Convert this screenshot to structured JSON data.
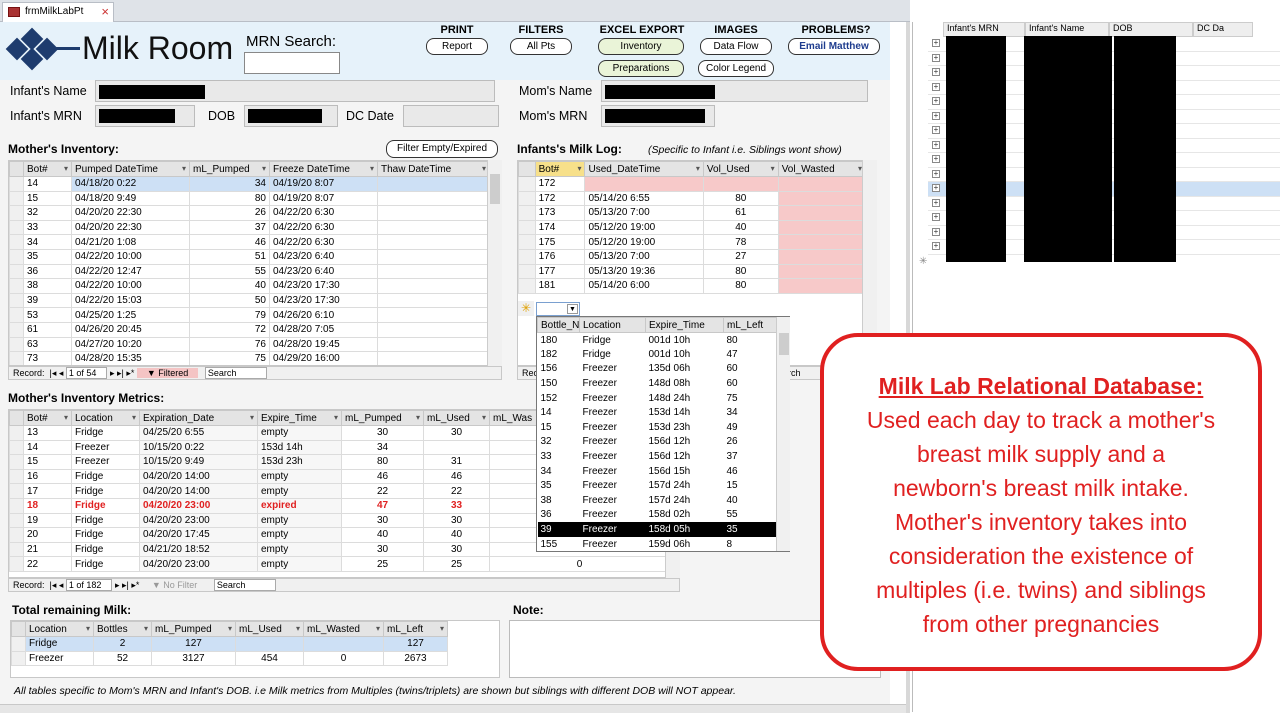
{
  "tab": {
    "label": "frmMilkLabPt"
  },
  "header": {
    "app_title": "Milk Room",
    "mrn_search_label": "MRN Search:",
    "mrn_search_value": "",
    "groups": {
      "print": {
        "title": "PRINT",
        "report": "Report"
      },
      "filters": {
        "title": "FILTERS",
        "all_pts": "All Pts"
      },
      "excel": {
        "title": "EXCEL EXPORT",
        "inventory": "Inventory",
        "preparations": "Preparations"
      },
      "images": {
        "title": "IMAGES",
        "data_flow": "Data Flow",
        "color_legend": "Color Legend"
      },
      "problems": {
        "title": "PROBLEMS?",
        "email": "Email Matthew"
      }
    }
  },
  "patient": {
    "infant_name_label": "Infant's Name",
    "infant_mrn_label": "Infant's MRN",
    "dob_label": "DOB",
    "dc_date_label": "DC Date",
    "moms_name_label": "Mom's Name",
    "moms_mrn_label": "Mom's MRN"
  },
  "mothers_inventory": {
    "title": "Mother's Inventory:",
    "filter_button": "Filter Empty/Expired",
    "columns": [
      "Bot#",
      "Pumped DateTime",
      "mL_Pumped",
      "Freeze DateTime",
      "Thaw DateTime"
    ],
    "rows": [
      [
        "14",
        "04/18/20 0:22",
        "34",
        "04/19/20 8:07",
        ""
      ],
      [
        "15",
        "04/18/20 9:49",
        "80",
        "04/19/20 8:07",
        ""
      ],
      [
        "32",
        "04/20/20 22:30",
        "26",
        "04/22/20 6:30",
        ""
      ],
      [
        "33",
        "04/20/20 22:30",
        "37",
        "04/22/20 6:30",
        ""
      ],
      [
        "34",
        "04/21/20 1:08",
        "46",
        "04/22/20 6:30",
        ""
      ],
      [
        "35",
        "04/22/20 10:00",
        "51",
        "04/23/20 6:40",
        ""
      ],
      [
        "36",
        "04/22/20 12:47",
        "55",
        "04/23/20 6:40",
        ""
      ],
      [
        "38",
        "04/22/20 10:00",
        "40",
        "04/23/20 17:30",
        ""
      ],
      [
        "39",
        "04/22/20 15:03",
        "50",
        "04/23/20 17:30",
        ""
      ],
      [
        "53",
        "04/25/20 1:25",
        "79",
        "04/26/20 6:10",
        ""
      ],
      [
        "61",
        "04/26/20 20:45",
        "72",
        "04/28/20 7:05",
        ""
      ],
      [
        "63",
        "04/27/20 10:20",
        "76",
        "04/28/20 19:45",
        ""
      ],
      [
        "73",
        "04/28/20 15:35",
        "75",
        "04/29/20 16:00",
        ""
      ]
    ],
    "record": {
      "label": "Record:",
      "position": "1 of 54",
      "filter": "Filtered",
      "search": "Search"
    }
  },
  "infants_milk_log": {
    "title": "Infants's Milk Log:",
    "note": "(Specific to Infant i.e. Siblings wont show)",
    "columns": [
      "Bot#",
      "Used_DateTime",
      "Vol_Used",
      "Vol_Wasted"
    ],
    "rows": [
      [
        "172",
        "",
        "",
        ""
      ],
      [
        "172",
        "05/14/20 6:55",
        "80",
        ""
      ],
      [
        "173",
        "05/13/20 7:00",
        "61",
        ""
      ],
      [
        "174",
        "05/12/20 19:00",
        "40",
        ""
      ],
      [
        "175",
        "05/12/20 19:00",
        "78",
        ""
      ],
      [
        "176",
        "05/13/20 7:00",
        "27",
        ""
      ],
      [
        "177",
        "05/13/20 19:36",
        "80",
        ""
      ],
      [
        "181",
        "05/14/20 6:00",
        "80",
        ""
      ]
    ],
    "record_label": "Rec",
    "search_tail": "rch"
  },
  "dropdown": {
    "columns": [
      "Bottle_N",
      "Location",
      "Expire_Time",
      "mL_Left"
    ],
    "rows": [
      [
        "180",
        "Fridge",
        "001d  10h",
        "80"
      ],
      [
        "182",
        "Fridge",
        "001d  10h",
        "47"
      ],
      [
        "156",
        "Freezer",
        "135d  06h",
        "60"
      ],
      [
        "150",
        "Freezer",
        "148d  08h",
        "60"
      ],
      [
        "152",
        "Freezer",
        "148d  24h",
        "75"
      ],
      [
        "14",
        "Freezer",
        "153d  14h",
        "34"
      ],
      [
        "15",
        "Freezer",
        "153d  23h",
        "49"
      ],
      [
        "32",
        "Freezer",
        "156d  12h",
        "26"
      ],
      [
        "33",
        "Freezer",
        "156d  12h",
        "37"
      ],
      [
        "34",
        "Freezer",
        "156d  15h",
        "46"
      ],
      [
        "35",
        "Freezer",
        "157d  24h",
        "15"
      ],
      [
        "38",
        "Freezer",
        "157d  24h",
        "40"
      ],
      [
        "36",
        "Freezer",
        "158d  02h",
        "55"
      ],
      [
        "39",
        "Freezer",
        "158d  05h",
        "35"
      ],
      [
        "155",
        "Freezer",
        "159d  06h",
        "8"
      ]
    ],
    "selected_index": 13
  },
  "inventory_metrics": {
    "title": "Mother's Inventory Metrics:",
    "columns": [
      "Bot#",
      "Location",
      "Expiration_Date",
      "Expire_Time",
      "mL_Pumped",
      "mL_Used",
      "mL_Was"
    ],
    "rows": [
      [
        "13",
        "Fridge",
        "04/25/20 6:55",
        "empty",
        "30",
        "30",
        "0"
      ],
      [
        "14",
        "Freezer",
        "10/15/20 0:22",
        "153d  14h",
        "34",
        "",
        ""
      ],
      [
        "15",
        "Freezer",
        "10/15/20 9:49",
        "153d  23h",
        "80",
        "31",
        "0"
      ],
      [
        "16",
        "Fridge",
        "04/20/20 14:00",
        "empty",
        "46",
        "46",
        "0"
      ],
      [
        "17",
        "Fridge",
        "04/20/20 14:00",
        "empty",
        "22",
        "22",
        "0"
      ],
      [
        "18",
        "Fridge",
        "04/20/20 23:00",
        "expired",
        "47",
        "33",
        "0"
      ],
      [
        "19",
        "Fridge",
        "04/20/20 23:00",
        "empty",
        "30",
        "30",
        "0"
      ],
      [
        "20",
        "Fridge",
        "04/20/20 17:45",
        "empty",
        "40",
        "40",
        "0"
      ],
      [
        "21",
        "Fridge",
        "04/21/20 18:52",
        "empty",
        "30",
        "30",
        "0"
      ],
      [
        "22",
        "Fridge",
        "04/20/20 23:00",
        "empty",
        "25",
        "25",
        "0"
      ]
    ],
    "expired_row_index": 5,
    "record": {
      "label": "Record:",
      "position": "1 of 182",
      "filter": "No Filter",
      "search": "Search"
    }
  },
  "total_remaining": {
    "title": "Total remaining Milk:",
    "columns": [
      "Location",
      "Bottles",
      "mL_Pumped",
      "mL_Used",
      "mL_Wasted",
      "mL_Left"
    ],
    "rows": [
      [
        "Fridge",
        "2",
        "127",
        "",
        "",
        "127"
      ],
      [
        "Freezer",
        "52",
        "3127",
        "454",
        "0",
        "2673"
      ]
    ]
  },
  "note": {
    "label": "Note:"
  },
  "footer_note": "All tables specific to  Mom's MRN and Infant's DOB. i.e Milk metrics from Multiples (twins/triplets) are shown but siblings with different DOB will NOT appear.",
  "right_pane": {
    "columns": [
      "Infant's MRN",
      "Infant's Name",
      "DOB",
      "DC Da"
    ]
  },
  "callout": {
    "heading": "Milk Lab Relational Database:",
    "lines": [
      "Used each day to track a mother's",
      "breast milk supply and a",
      "newborn's breast milk intake.",
      "Mother's inventory takes into",
      "consideration the existence of",
      "multiples (i.e. twins) and siblings",
      "from other pregnancies"
    ]
  },
  "colors": {
    "accent": "#e02020",
    "header_bg": "#e6f2fa",
    "logo": "#1e3c6e",
    "log_pink": "#f7c9c9",
    "selected_row": "#cde0f5"
  }
}
